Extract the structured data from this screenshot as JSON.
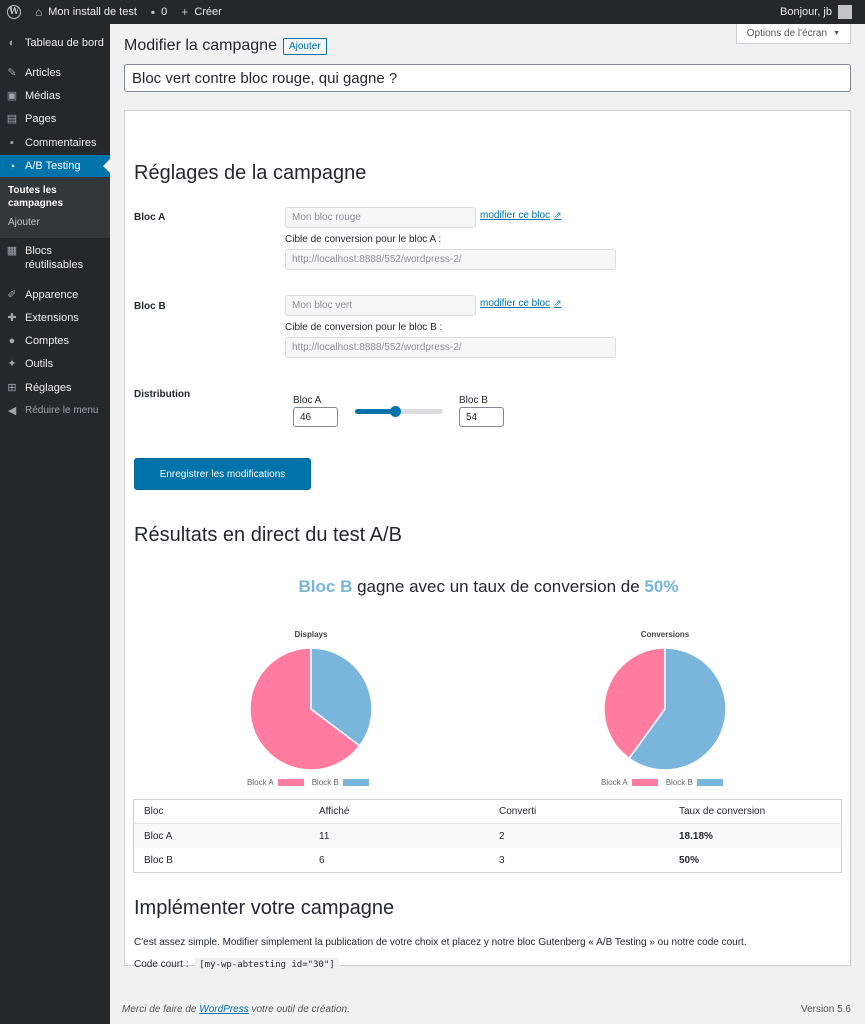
{
  "adminbar": {
    "site_name": "Mon install de test",
    "comments_count": "0",
    "new_label": "Créer",
    "greeting": "Bonjour, jb"
  },
  "menu": {
    "items": [
      {
        "label": "Tableau de bord",
        "icon": "dashboard-icon"
      },
      {
        "label": "Articles",
        "icon": "pin-icon"
      },
      {
        "label": "Médias",
        "icon": "media-icon"
      },
      {
        "label": "Pages",
        "icon": "pages-icon"
      },
      {
        "label": "Commentaires",
        "icon": "comments-icon"
      },
      {
        "label": "A/B Testing",
        "icon": "pie-icon"
      },
      {
        "label": "Blocs réutilisables",
        "icon": "blocks-icon"
      },
      {
        "label": "Apparence",
        "icon": "brush-icon"
      },
      {
        "label": "Extensions",
        "icon": "plugin-icon"
      },
      {
        "label": "Comptes",
        "icon": "user-icon"
      },
      {
        "label": "Outils",
        "icon": "wrench-icon"
      },
      {
        "label": "Réglages",
        "icon": "settings-icon"
      },
      {
        "label": "Réduire le menu",
        "icon": "collapse-icon"
      }
    ],
    "submenu": [
      "Toutes les campagnes",
      "Ajouter"
    ]
  },
  "header": {
    "screen_options": "Options de l'écran",
    "title": "Modifier la campagne",
    "add_label": "Ajouter",
    "campaign_title": "Bloc vert contre bloc rouge, qui gagne ?"
  },
  "settings": {
    "heading": "Réglages de la campagne",
    "bloc_a": {
      "label": "Bloc A",
      "block_name": "Mon bloc rouge",
      "edit_link": "modifier ce bloc",
      "target_label": "Cible de conversion pour le bloc A :",
      "target_url": "http://localhost:8888/552/wordpress-2/"
    },
    "bloc_b": {
      "label": "Bloc B",
      "block_name": "Mon bloc vert",
      "edit_link": "modifier ce bloc",
      "target_label": "Cible de conversion pour le bloc B :",
      "target_url": "http://localhost:8888/552/wordpress-2/"
    },
    "distribution": {
      "label": "Distribution",
      "a_label": "Bloc A",
      "a_value": "46",
      "b_label": "Bloc B",
      "b_value": "54",
      "slider_fraction": 0.46
    },
    "save_label": "Enregistrer les modifications"
  },
  "results": {
    "heading": "Résultats en direct du test A/B",
    "winner_name": "Bloc B",
    "winner_text": " gagne avec un taux de conversion de ",
    "winner_rate": "50%",
    "colors": {
      "a": "#ff7ba0",
      "b": "#7ab5db"
    }
  },
  "chart_data": [
    {
      "type": "pie",
      "title": "Displays",
      "categories": [
        "Block A",
        "Block B"
      ],
      "values": [
        11,
        6
      ],
      "legend": "bottom"
    },
    {
      "type": "pie",
      "title": "Conversions",
      "categories": [
        "Block A",
        "Block B"
      ],
      "values": [
        2,
        3
      ],
      "legend": "bottom"
    }
  ],
  "table": {
    "headers": [
      "Bloc",
      "Affiché",
      "Converti",
      "Taux de conversion"
    ],
    "rows": [
      [
        "Bloc A",
        "11",
        "2",
        "18.18%"
      ],
      [
        "Bloc B",
        "6",
        "3",
        "50%"
      ]
    ]
  },
  "implement": {
    "heading": "Implémenter votre campagne",
    "text": "C'est assez simple. Modifier simplement la publication de votre choix et placez y notre bloc Gutenberg « A/B Testing » ou notre code court.",
    "shortcode_label": "Code court :",
    "shortcode": "[my-wp-abtesting id=\"30\"]"
  },
  "footer": {
    "prefix": "Merci de faire de ",
    "link": "WordPress",
    "suffix": " votre outil de création.",
    "version": "Version 5.6"
  }
}
